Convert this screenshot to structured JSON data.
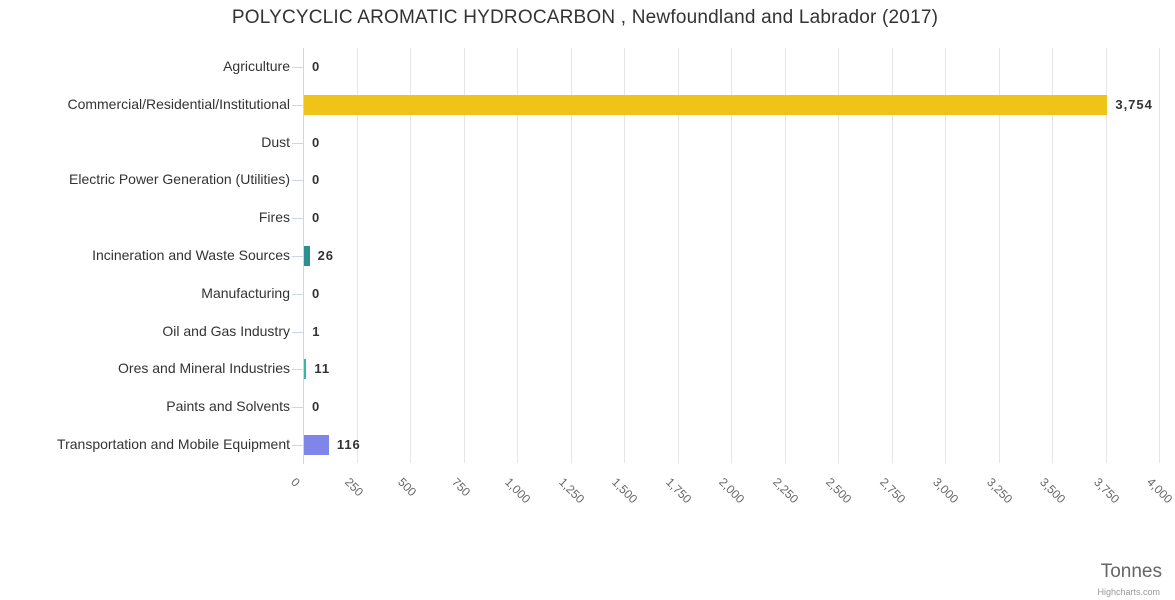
{
  "title": "POLYCYCLIC AROMATIC HYDROCARBON , Newfoundland and Labrador (2017)",
  "credit": "Highcharts.com",
  "chart_data": {
    "type": "bar",
    "orientation": "horizontal",
    "title": "POLYCYCLIC AROMATIC HYDROCARBON , Newfoundland and Labrador (2017)",
    "categories": [
      "Agriculture",
      "Commercial/Residential/Institutional",
      "Dust",
      "Electric Power Generation (Utilities)",
      "Fires",
      "Incineration and Waste Sources",
      "Manufacturing",
      "Oil and Gas Industry",
      "Ores and Mineral Industries",
      "Paints and Solvents",
      "Transportation and Mobile Equipment"
    ],
    "values": [
      0,
      3754,
      0,
      0,
      0,
      26,
      0,
      1,
      11,
      0,
      116
    ],
    "value_labels": [
      "0",
      "3,754",
      "0",
      "0",
      "0",
      "26",
      "0",
      "1",
      "11",
      "0",
      "116"
    ],
    "bar_colors": [
      null,
      "#EFC318",
      null,
      null,
      null,
      "#2B908F",
      null,
      null,
      "#35B8AC",
      null,
      "#8085E9"
    ],
    "xlabel": "Tonnes",
    "xlim": [
      0,
      4000
    ],
    "x_tick_labels": [
      "0",
      "250",
      "500",
      "750",
      "1,000",
      "1,250",
      "1,500",
      "1,750",
      "2,000",
      "2,250",
      "2,500",
      "2,750",
      "3,000",
      "3,250",
      "3,500",
      "3,750",
      "4,000"
    ],
    "grid": true,
    "legend": "none",
    "styles": {
      "grid_color": "#e6e6e6",
      "axis_color": "#ccd6eb",
      "label_color": "#333333",
      "tick_label_color": "#666666",
      "title_color": "#333333",
      "axis_title_color": "#666666",
      "credit_color": "#999999"
    }
  }
}
